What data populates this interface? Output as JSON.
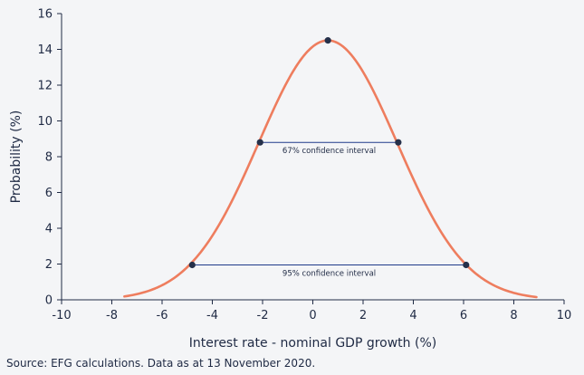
{
  "chart_data": {
    "type": "line",
    "title": "",
    "xlabel": "Interest rate - nominal GDP growth (%)",
    "ylabel": "Probability (%)",
    "xlim": [
      -10,
      10
    ],
    "ylim": [
      0,
      16
    ],
    "x_ticks": [
      "-10",
      "-8",
      "-6",
      "-4",
      "-2",
      "0",
      "2",
      "4",
      "6",
      "8",
      "10"
    ],
    "y_ticks": [
      "0",
      "2",
      "4",
      "6",
      "8",
      "10",
      "12",
      "14",
      "16"
    ],
    "series": [
      {
        "name": "Probability distribution",
        "color": "#ee7d5e",
        "mean": 0.6,
        "sd": 2.75,
        "peak": 14.5,
        "x_range": [
          -7.5,
          8.9
        ]
      }
    ],
    "points": [
      {
        "x": 0.6,
        "y": 14.5
      },
      {
        "x": -2.1,
        "y": 8.8
      },
      {
        "x": 3.4,
        "y": 8.8
      },
      {
        "x": -4.8,
        "y": 1.95
      },
      {
        "x": 6.1,
        "y": 1.95
      }
    ],
    "intervals": [
      {
        "label": "67% confidence interval",
        "x1": -2.1,
        "x2": 3.4,
        "y": 8.8
      },
      {
        "label": "95% confidence interval",
        "x1": -4.8,
        "x2": 6.1,
        "y": 1.95
      }
    ],
    "colors": {
      "curve": "#ee7d5e",
      "marker": "#25304a",
      "axis": "#1f2a44",
      "interval_line": "#1e3a8a"
    }
  },
  "source": "Source: EFG calculations. Data as at 13 November 2020."
}
